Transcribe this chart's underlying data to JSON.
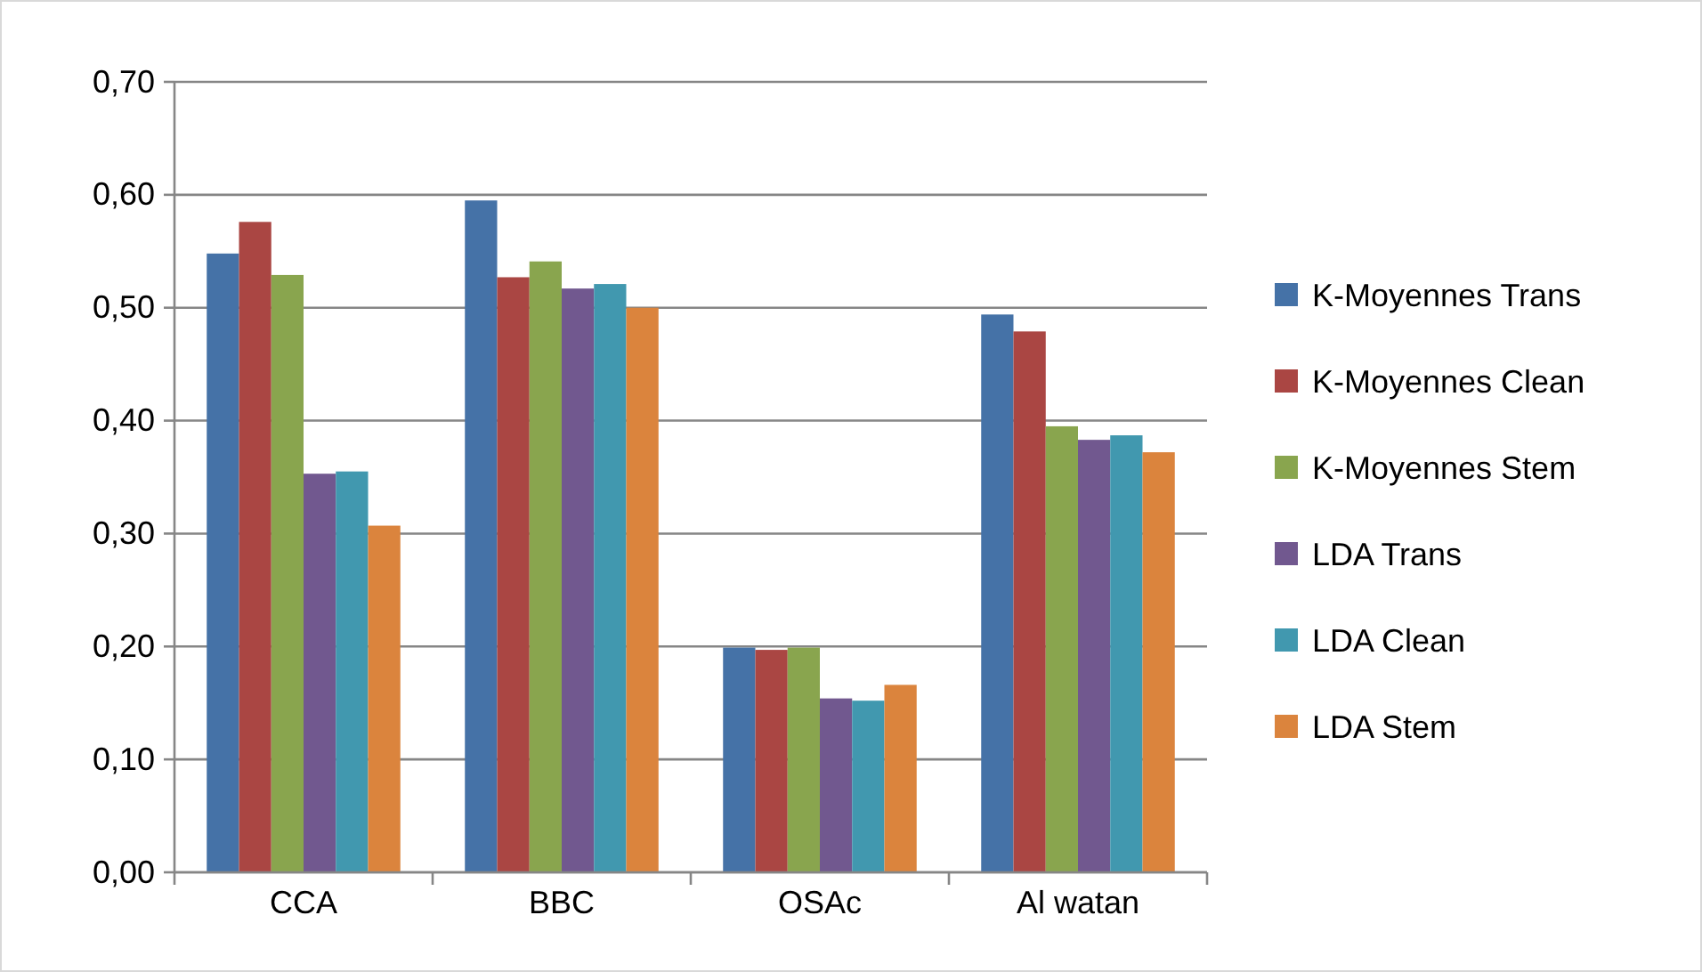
{
  "chart_data": {
    "type": "bar",
    "categories": [
      "CCA",
      "BBC",
      "OSAc",
      "Al watan"
    ],
    "series": [
      {
        "name": "K-Moyennes Trans",
        "color": "#4572a7",
        "values": [
          0.548,
          0.595,
          0.199,
          0.494
        ]
      },
      {
        "name": "K-Moyennes Clean",
        "color": "#aa4643",
        "values": [
          0.576,
          0.527,
          0.197,
          0.479
        ]
      },
      {
        "name": "K-Moyennes Stem",
        "color": "#89a54e",
        "values": [
          0.529,
          0.541,
          0.199,
          0.395
        ]
      },
      {
        "name": "LDA Trans",
        "color": "#71588f",
        "values": [
          0.353,
          0.517,
          0.154,
          0.383
        ]
      },
      {
        "name": "LDA Clean",
        "color": "#4198af",
        "values": [
          0.355,
          0.521,
          0.152,
          0.387
        ]
      },
      {
        "name": "LDA Stem",
        "color": "#db843d",
        "values": [
          0.307,
          0.5,
          0.166,
          0.372
        ]
      }
    ],
    "ylim": [
      0,
      0.7
    ],
    "yticks": [
      {
        "value": 0,
        "label": "0,00"
      },
      {
        "value": 0.1,
        "label": "0,10"
      },
      {
        "value": 0.2,
        "label": "0,20"
      },
      {
        "value": 0.3,
        "label": "0,30"
      },
      {
        "value": 0.4,
        "label": "0,40"
      },
      {
        "value": 0.5,
        "label": "0,50"
      },
      {
        "value": 0.6,
        "label": "0,60"
      },
      {
        "value": 0.7,
        "label": "0,70"
      }
    ],
    "grid": "y",
    "legend": "right"
  }
}
